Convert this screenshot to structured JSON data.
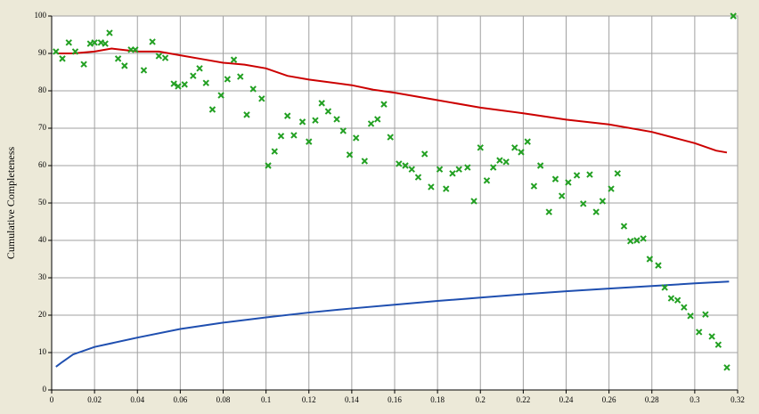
{
  "chart_data": {
    "type": "line",
    "y_label": "Cumulative Completeness",
    "xlim": [
      0,
      0.32
    ],
    "ylim": [
      0,
      100
    ],
    "xticks": [
      0,
      0.02,
      0.04,
      0.06,
      0.08,
      0.1,
      0.12,
      0.14,
      0.16,
      0.18,
      0.2,
      0.22,
      0.24,
      0.26,
      0.28,
      0.3,
      0.32
    ],
    "yticks": [
      0,
      10,
      20,
      30,
      40,
      50,
      60,
      70,
      80,
      90,
      100
    ],
    "grid": true,
    "series": [
      {
        "style": "line",
        "color": "#cc0000",
        "x": [
          0.003,
          0.01,
          0.02,
          0.028,
          0.04,
          0.05,
          0.06,
          0.07,
          0.08,
          0.09,
          0.1,
          0.11,
          0.12,
          0.14,
          0.15,
          0.16,
          0.18,
          0.2,
          0.22,
          0.24,
          0.26,
          0.28,
          0.29,
          0.3,
          0.31,
          0.315
        ],
        "values": [
          90,
          90,
          90.5,
          91.3,
          90.5,
          90.5,
          89.5,
          88.5,
          87.5,
          87,
          86,
          84,
          83,
          81.5,
          80.3,
          79.5,
          77.5,
          75.5,
          74,
          72.3,
          71,
          69,
          67.5,
          66,
          64,
          63.5
        ]
      },
      {
        "style": "line",
        "color": "#1f4fb0",
        "x": [
          0.002,
          0.005,
          0.01,
          0.02,
          0.04,
          0.06,
          0.08,
          0.1,
          0.12,
          0.14,
          0.16,
          0.18,
          0.2,
          0.22,
          0.24,
          0.26,
          0.28,
          0.3,
          0.316
        ],
        "values": [
          6.2,
          7.5,
          9.5,
          11.5,
          14,
          16.3,
          18,
          19.4,
          20.7,
          21.8,
          22.8,
          23.8,
          24.7,
          25.6,
          26.4,
          27.1,
          27.8,
          28.5,
          29
        ]
      },
      {
        "style": "markers",
        "color": "#22a022",
        "x": [
          0.002,
          0.005,
          0.008,
          0.011,
          0.015,
          0.018,
          0.02,
          0.023,
          0.025,
          0.027,
          0.031,
          0.034,
          0.037,
          0.039,
          0.043,
          0.047,
          0.05,
          0.053,
          0.057,
          0.059,
          0.062,
          0.066,
          0.069,
          0.072,
          0.075,
          0.079,
          0.082,
          0.085,
          0.088,
          0.091,
          0.094,
          0.098,
          0.101,
          0.104,
          0.107,
          0.11,
          0.113,
          0.117,
          0.12,
          0.123,
          0.126,
          0.129,
          0.133,
          0.136,
          0.139,
          0.142,
          0.146,
          0.149,
          0.152,
          0.155,
          0.158,
          0.162,
          0.165,
          0.168,
          0.171,
          0.174,
          0.177,
          0.181,
          0.184,
          0.187,
          0.19,
          0.194,
          0.197,
          0.2,
          0.203,
          0.206,
          0.209,
          0.212,
          0.216,
          0.219,
          0.222,
          0.225,
          0.228,
          0.232,
          0.235,
          0.238,
          0.241,
          0.245,
          0.248,
          0.251,
          0.254,
          0.257,
          0.261,
          0.264,
          0.267,
          0.27,
          0.273,
          0.276,
          0.279,
          0.283,
          0.286,
          0.289,
          0.292,
          0.295,
          0.298,
          0.302,
          0.305,
          0.308,
          0.311,
          0.315,
          0.318
        ],
        "values": [
          90.5,
          88.6,
          92.9,
          90.5,
          87.1,
          92.6,
          92.9,
          92.9,
          92.6,
          95.5,
          88.6,
          86.7,
          91.0,
          91.0,
          85.5,
          93.1,
          89.3,
          88.8,
          81.9,
          81.2,
          81.7,
          84.0,
          86.0,
          82.1,
          75.0,
          78.8,
          83.1,
          88.3,
          83.8,
          73.6,
          80.5,
          77.9,
          60.0,
          63.8,
          67.9,
          73.3,
          68.1,
          71.7,
          66.4,
          72.1,
          76.7,
          74.5,
          72.4,
          69.3,
          62.9,
          67.4,
          61.2,
          71.2,
          72.4,
          76.4,
          67.6,
          60.5,
          60.0,
          59.0,
          56.9,
          63.1,
          54.3,
          59.0,
          53.8,
          57.9,
          59.0,
          59.5,
          50.5,
          64.8,
          56.0,
          59.5,
          61.4,
          61.0,
          64.8,
          63.6,
          66.4,
          54.5,
          60.0,
          47.6,
          56.4,
          51.9,
          55.5,
          57.4,
          49.8,
          57.6,
          47.6,
          50.5,
          53.8,
          57.9,
          43.8,
          39.8,
          40.0,
          40.5,
          35.0,
          33.3,
          27.4,
          24.5,
          24.0,
          22.1,
          19.8,
          15.5,
          20.2,
          14.3,
          12.1,
          6.0,
          100
        ]
      }
    ]
  }
}
